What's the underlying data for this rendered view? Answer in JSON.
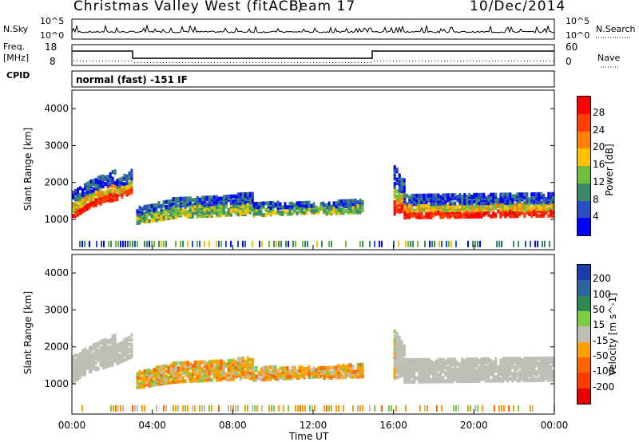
{
  "header": {
    "station": "Christmas Valley West (fitACF)",
    "beam": "Beam 17",
    "date": "10/Dec/2014"
  },
  "noise_panel": {
    "left_label": "N.Sky",
    "left_ticks": [
      "10^5",
      "10^0"
    ],
    "right_label": "N.Search",
    "right_ticks": [
      "10^5",
      "10^0"
    ]
  },
  "freq_panel": {
    "left_label_line1": "Freq.",
    "left_label_line2": "[MHz]",
    "left_ticks": [
      "18",
      "8"
    ],
    "right_label": "Nave",
    "right_ticks": [
      "60",
      "0"
    ]
  },
  "cpid": {
    "label": "CPID",
    "value": "normal (fast) -151 IF"
  },
  "colors": {
    "power_scale": [
      "#0000ff",
      "#2a4fc4",
      "#3a8a6a",
      "#6fbf3a",
      "#ffc000",
      "#ff8000",
      "#ff4000",
      "#ff0000"
    ],
    "velocity_scale": [
      "#1e3ca8",
      "#2e64a0",
      "#2e8a50",
      "#7ccd46",
      "#bebeb4",
      "#ffa000",
      "#ff6400",
      "#ff3c00",
      "#e60000"
    ]
  },
  "chart_data": [
    {
      "type": "heatmap",
      "name": "power",
      "xlabel": "",
      "ylabel": "Slant Range [km]",
      "x_ticks": [
        "00:00",
        "04:00",
        "08:00",
        "12:00",
        "16:00",
        "20:00",
        "00:00"
      ],
      "y_ticks": [
        1000,
        2000,
        3000,
        4000
      ],
      "ylim": [
        180,
        4500
      ],
      "colorbar": {
        "label": "Power [dB]",
        "ticks": [
          4,
          8,
          12,
          16,
          20,
          24,
          28
        ]
      }
    },
    {
      "type": "heatmap",
      "name": "velocity",
      "xlabel": "Time UT",
      "ylabel": "Slant Range [km]",
      "x_ticks": [
        "00:00",
        "04:00",
        "08:00",
        "12:00",
        "16:00",
        "20:00",
        "00:00"
      ],
      "y_ticks": [
        1000,
        2000,
        3000,
        4000
      ],
      "ylim": [
        180,
        4500
      ],
      "colorbar": {
        "label": "Velocity [m s^-1]",
        "ticks": [
          200,
          100,
          50,
          15,
          -15,
          -50,
          -100,
          -200
        ]
      }
    }
  ]
}
